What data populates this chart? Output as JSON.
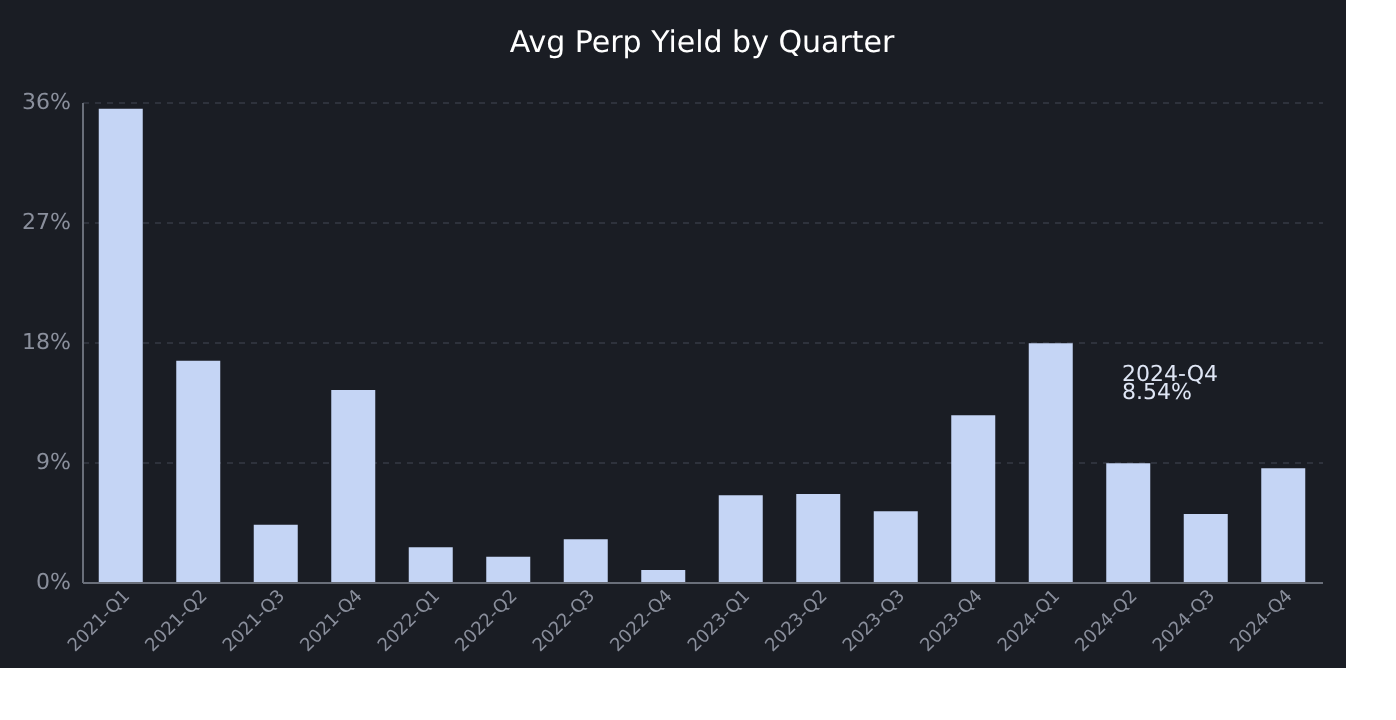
{
  "chart_data": {
    "type": "bar",
    "title": "Avg Perp Yield by Quarter",
    "categories": [
      "2021-Q1",
      "2021-Q2",
      "2021-Q3",
      "2021-Q4",
      "2022-Q1",
      "2022-Q2",
      "2022-Q3",
      "2022-Q4",
      "2023-Q1",
      "2023-Q2",
      "2023-Q3",
      "2023-Q4",
      "2024-Q1",
      "2024-Q2",
      "2024-Q3",
      "2024-Q4"
    ],
    "values": [
      35.5,
      16.6,
      4.3,
      14.4,
      2.6,
      1.9,
      3.2,
      0.9,
      6.5,
      6.6,
      5.3,
      12.5,
      17.9,
      8.9,
      5.1,
      8.54
    ],
    "color": "#c5d5f5",
    "ylim": [
      0,
      36
    ],
    "yticks": [
      {
        "value": 0,
        "label": "0%"
      },
      {
        "value": 9,
        "label": "9%"
      },
      {
        "value": 18,
        "label": "18%"
      },
      {
        "value": 27,
        "label": "27%"
      },
      {
        "value": 36,
        "label": "36%"
      }
    ],
    "grid": "y",
    "annotations": [
      "2024-Q4",
      "8.54%"
    ]
  }
}
